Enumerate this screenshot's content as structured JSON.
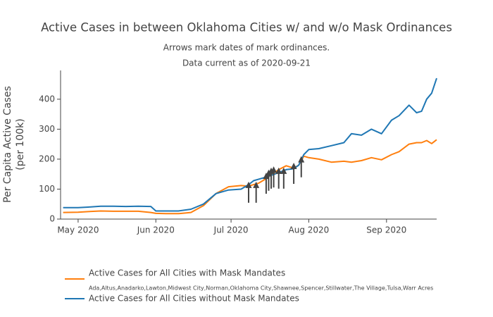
{
  "chart_data": {
    "type": "line",
    "title": "Active Cases in between Oklahoma Cities w/ and w/o Mask Ordinances",
    "subtitle": [
      "Arrows mark dates of mark ordinances.",
      "Data current as of 2020-09-21"
    ],
    "y_label": [
      "Per Capita Active Cases",
      "(per 100k)"
    ],
    "x": [
      "2020-04-25",
      "2020-05-01",
      "2020-05-05",
      "2020-05-10",
      "2020-05-15",
      "2020-05-20",
      "2020-05-25",
      "2020-05-30",
      "2020-06-01",
      "2020-06-05",
      "2020-06-10",
      "2020-06-15",
      "2020-06-20",
      "2020-06-25",
      "2020-06-30",
      "2020-07-05",
      "2020-07-08",
      "2020-07-10",
      "2020-07-12",
      "2020-07-15",
      "2020-07-20",
      "2020-07-23",
      "2020-07-26",
      "2020-07-28",
      "2020-07-30",
      "2020-08-01",
      "2020-08-05",
      "2020-08-10",
      "2020-08-15",
      "2020-08-18",
      "2020-08-22",
      "2020-08-26",
      "2020-08-30",
      "2020-09-03",
      "2020-09-06",
      "2020-09-10",
      "2020-09-13",
      "2020-09-15",
      "2020-09-17",
      "2020-09-19",
      "2020-09-21"
    ],
    "series": [
      {
        "name": "Active Cases for All Cities with Mask Mandates",
        "note": "Ada,Altus,Anadarko,Lawton,Midwest City,Norman,Oklahoma City,Shawnee,Spencer,Stillwater,The Village,Tulsa,Warr Acres",
        "color": "#ff7f0e",
        "values": [
          22,
          23,
          25,
          27,
          26,
          26,
          26,
          22,
          19,
          18,
          18,
          22,
          45,
          85,
          108,
          112,
          110,
          115,
          120,
          135,
          165,
          178,
          170,
          180,
          210,
          205,
          200,
          190,
          193,
          190,
          195,
          205,
          198,
          215,
          225,
          250,
          255,
          255,
          262,
          252,
          265
        ]
      },
      {
        "name": "Active Cases for All Cities without Mask Mandates",
        "color": "#1f77b4",
        "values": [
          38,
          38,
          40,
          43,
          43,
          42,
          43,
          42,
          27,
          27,
          27,
          33,
          50,
          85,
          97,
          100,
          115,
          128,
          133,
          140,
          155,
          165,
          168,
          180,
          215,
          232,
          235,
          245,
          255,
          285,
          280,
          300,
          285,
          330,
          345,
          380,
          355,
          360,
          400,
          420,
          470
        ]
      }
    ],
    "arrows": {
      "color": "#444444",
      "dates": [
        "2020-07-08",
        "2020-07-11",
        "2020-07-15",
        "2020-07-16",
        "2020-07-17",
        "2020-07-18",
        "2020-07-20",
        "2020-07-22",
        "2020-07-26",
        "2020-07-29"
      ],
      "values": [
        125,
        125,
        155,
        165,
        172,
        176,
        172,
        172,
        188,
        210
      ]
    },
    "xlim": [
      "2020-04-24",
      "2020-09-21"
    ],
    "xticks": [
      {
        "value": "2020-05-01",
        "label": "May 2020"
      },
      {
        "value": "2020-06-01",
        "label": "Jun 2020"
      },
      {
        "value": "2020-07-01",
        "label": "Jul 2020"
      },
      {
        "value": "2020-08-01",
        "label": "Aug 2020"
      },
      {
        "value": "2020-09-01",
        "label": "Sep 2020"
      }
    ],
    "ylim": [
      0,
      496
    ],
    "yticks": [
      0,
      100,
      200,
      300,
      400
    ],
    "grid": false
  }
}
